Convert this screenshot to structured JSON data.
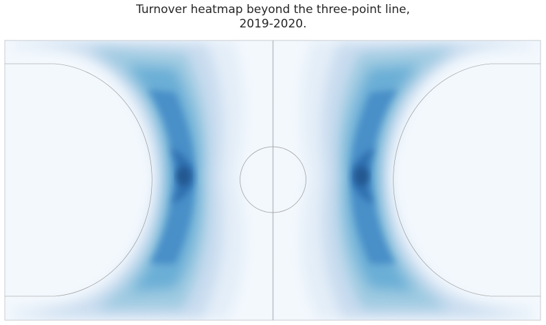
{
  "chart_data": {
    "type": "heatmap",
    "title": "Turnover heatmap beyond the three-point line,",
    "subtitle": "2019-2020.",
    "xlabel": "",
    "ylabel": "",
    "grid": false,
    "colormap": "Blues",
    "colors": {
      "background": "#f3f8fd",
      "low": "#e4eef8",
      "mid": "#6aaed6",
      "high": "#2a5e9f",
      "court_lines": "#8f8f8f"
    },
    "density_peaks": [
      {
        "side": "left",
        "region": "top of the arc",
        "level": "max"
      },
      {
        "side": "right",
        "region": "top of the arc",
        "level": "max"
      }
    ],
    "court_elements": [
      "half-court line",
      "center circle",
      "three-point arcs",
      "corner three lines"
    ]
  }
}
